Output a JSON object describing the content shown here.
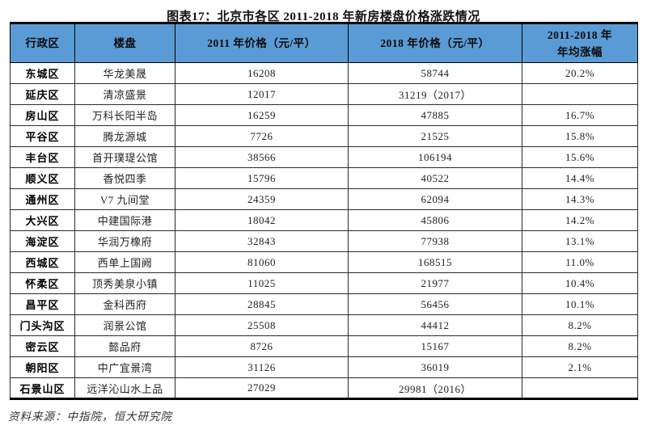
{
  "title": "图表17：北京市各区 2011-2018 年新房楼盘价格涨跌情况",
  "source_note": "资料来源：中指院，恒大研究院",
  "colors": {
    "header_bg": "#5B9BD5",
    "outer_border": "#000000",
    "grid_line": "#2b2b2b"
  },
  "table": {
    "columns": [
      {
        "label": "行政区"
      },
      {
        "label": "楼盘"
      },
      {
        "label": "2011 年价格（元/平）"
      },
      {
        "label": "2018 年价格（元/平）"
      },
      {
        "label": "2011-2018 年",
        "label2": "年均涨幅"
      }
    ],
    "rows": [
      [
        "东城区",
        "华龙美晟",
        "16208",
        "58744",
        "20.2%"
      ],
      [
        "延庆区",
        "清凉盛景",
        "12017",
        "31219（2017）",
        ""
      ],
      [
        "房山区",
        "万科长阳半岛",
        "16259",
        "47885",
        "16.7%"
      ],
      [
        "平谷区",
        "腾龙源城",
        "7726",
        "21525",
        "15.8%"
      ],
      [
        "丰台区",
        "首开璞瑅公馆",
        "38566",
        "106194",
        "15.6%"
      ],
      [
        "顺义区",
        "香悦四季",
        "15796",
        "40522",
        "14.4%"
      ],
      [
        "通州区",
        "V7 九间堂",
        "24359",
        "62094",
        "14.3%"
      ],
      [
        "大兴区",
        "中建国际港",
        "18042",
        "45806",
        "14.2%"
      ],
      [
        "海淀区",
        "华润万橡府",
        "32843",
        "77938",
        "13.1%"
      ],
      [
        "西城区",
        "西单上国阙",
        "81060",
        "168515",
        "11.0%"
      ],
      [
        "怀柔区",
        "顶秀美泉小镇",
        "11025",
        "21977",
        "10.4%"
      ],
      [
        "昌平区",
        "金科西府",
        "28845",
        "56456",
        "10.1%"
      ],
      [
        "门头沟区",
        "润景公馆",
        "25508",
        "44412",
        "8.2%"
      ],
      [
        "密云区",
        "懿品府",
        "8726",
        "15167",
        "8.2%"
      ],
      [
        "朝阳区",
        "中广宜景湾",
        "31126",
        "36019",
        "2.1%"
      ],
      [
        "石景山区",
        "远洋沁山水上品",
        "27029",
        "29981（2016）",
        ""
      ]
    ]
  }
}
